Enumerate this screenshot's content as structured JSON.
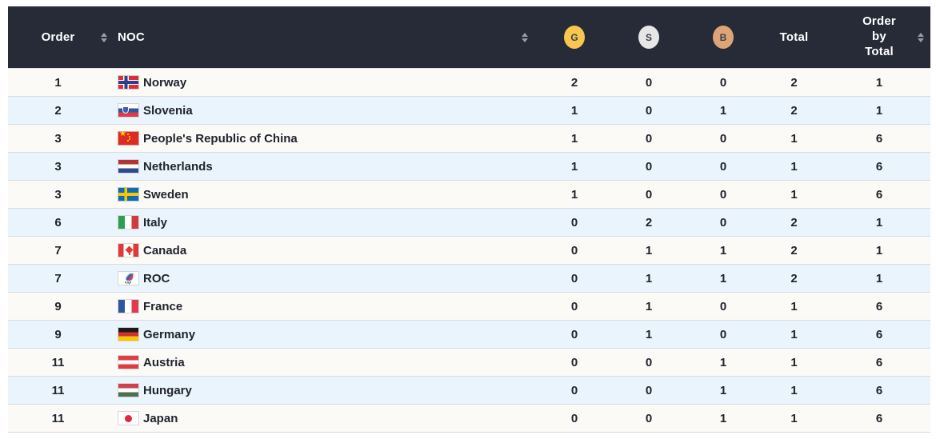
{
  "table": {
    "columns": {
      "order": "Order",
      "noc": "NOC",
      "gold": "G",
      "silver": "S",
      "bronze": "B",
      "total": "Total",
      "order_by_total": "Order by Total"
    },
    "medal_colors": {
      "gold": "#F6C64F",
      "silver": "#E6E6E6",
      "bronze": "#DCA477"
    },
    "header_bg": "#262B37",
    "stripe_color": "#E9F4FC",
    "rows": [
      {
        "order": "1",
        "noc": "Norway",
        "flag": "norway-flag",
        "gold": "2",
        "silver": "0",
        "bronze": "0",
        "total": "2",
        "order_by_total": "1"
      },
      {
        "order": "2",
        "noc": "Slovenia",
        "flag": "slovenia-flag",
        "gold": "1",
        "silver": "0",
        "bronze": "1",
        "total": "2",
        "order_by_total": "1"
      },
      {
        "order": "3",
        "noc": "People's Republic of China",
        "flag": "china-flag",
        "gold": "1",
        "silver": "0",
        "bronze": "0",
        "total": "1",
        "order_by_total": "6"
      },
      {
        "order": "3",
        "noc": "Netherlands",
        "flag": "netherlands-flag",
        "gold": "1",
        "silver": "0",
        "bronze": "0",
        "total": "1",
        "order_by_total": "6"
      },
      {
        "order": "3",
        "noc": "Sweden",
        "flag": "sweden-flag",
        "gold": "1",
        "silver": "0",
        "bronze": "0",
        "total": "1",
        "order_by_total": "6"
      },
      {
        "order": "6",
        "noc": "Italy",
        "flag": "italy-flag",
        "gold": "0",
        "silver": "2",
        "bronze": "0",
        "total": "2",
        "order_by_total": "1"
      },
      {
        "order": "7",
        "noc": "Canada",
        "flag": "canada-flag",
        "gold": "0",
        "silver": "1",
        "bronze": "1",
        "total": "2",
        "order_by_total": "1"
      },
      {
        "order": "7",
        "noc": "ROC",
        "flag": "roc-flag",
        "gold": "0",
        "silver": "1",
        "bronze": "1",
        "total": "2",
        "order_by_total": "1"
      },
      {
        "order": "9",
        "noc": "France",
        "flag": "france-flag",
        "gold": "0",
        "silver": "1",
        "bronze": "0",
        "total": "1",
        "order_by_total": "6"
      },
      {
        "order": "9",
        "noc": "Germany",
        "flag": "germany-flag",
        "gold": "0",
        "silver": "1",
        "bronze": "0",
        "total": "1",
        "order_by_total": "6"
      },
      {
        "order": "11",
        "noc": "Austria",
        "flag": "austria-flag",
        "gold": "0",
        "silver": "0",
        "bronze": "1",
        "total": "1",
        "order_by_total": "6"
      },
      {
        "order": "11",
        "noc": "Hungary",
        "flag": "hungary-flag",
        "gold": "0",
        "silver": "0",
        "bronze": "1",
        "total": "1",
        "order_by_total": "6"
      },
      {
        "order": "11",
        "noc": "Japan",
        "flag": "japan-flag",
        "gold": "0",
        "silver": "0",
        "bronze": "1",
        "total": "1",
        "order_by_total": "6"
      }
    ]
  }
}
